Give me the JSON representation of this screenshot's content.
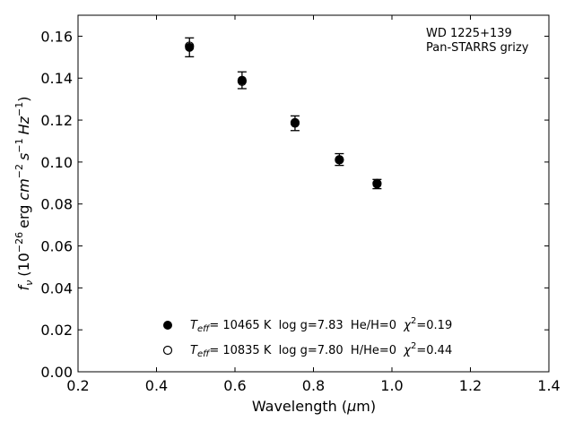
{
  "chart_data": {
    "type": "scatter",
    "annotation": [
      "WD 1225+139",
      "Pan-STARRS grizy"
    ],
    "xlabel": {
      "text": "Wavelength (",
      "sym": "μ",
      "unit": "m)"
    },
    "ylabel": {
      "f": "f",
      "fsub": "ν",
      "open": "(10",
      "exp1": "−26",
      "erg": "erg",
      "cm": "cm",
      "exp2": "−2",
      "s": "s",
      "exp3": "−1",
      "hz": "Hz",
      "exp4": "−1",
      "close": ")"
    },
    "xlim": [
      0.2,
      1.4
    ],
    "ylim": [
      0.0,
      0.17
    ],
    "xticks": [
      0.2,
      0.4,
      0.6,
      0.8,
      1.0,
      1.2,
      1.4
    ],
    "xtick_labels": [
      "0.2",
      "0.4",
      "0.6",
      "0.8",
      "1.0",
      "1.2",
      "1.4"
    ],
    "yticks": [
      0.0,
      0.02,
      0.04,
      0.06,
      0.08,
      0.1,
      0.12,
      0.14,
      0.16
    ],
    "ytick_labels": [
      "0.00",
      "0.02",
      "0.04",
      "0.06",
      "0.08",
      "0.10",
      "0.12",
      "0.14",
      "0.16"
    ],
    "grid": false,
    "series": [
      {
        "marker": "filled",
        "color": "#000000",
        "legend_parts": {
          "T": "T",
          "sub": "eff",
          "a": "= 10465 K  log g=7.83  He/H=0  ",
          "chi": "χ",
          "sup": "2",
          "b": "=0.19"
        },
        "points": [
          {
            "x": 0.484,
            "y": 0.1547,
            "err": 0.0045
          },
          {
            "x": 0.618,
            "y": 0.139,
            "err": 0.004
          },
          {
            "x": 0.753,
            "y": 0.1185,
            "err": 0.0035
          },
          {
            "x": 0.866,
            "y": 0.1012,
            "err": 0.0028
          },
          {
            "x": 0.962,
            "y": 0.0895,
            "err": 0.0022
          }
        ]
      },
      {
        "marker": "open",
        "color": "#000000",
        "legend_parts": {
          "T": "T",
          "sub": "eff",
          "a": "= 10835 K  log g=7.80  H/He=0  ",
          "chi": "χ",
          "sup": "2",
          "b": "=0.44"
        },
        "points": [
          {
            "x": 0.484,
            "y": 0.1553
          },
          {
            "x": 0.618,
            "y": 0.1385
          },
          {
            "x": 0.753,
            "y": 0.1188
          },
          {
            "x": 0.866,
            "y": 0.101
          },
          {
            "x": 0.962,
            "y": 0.0898
          }
        ]
      }
    ],
    "legend_placement": "lower-center"
  }
}
